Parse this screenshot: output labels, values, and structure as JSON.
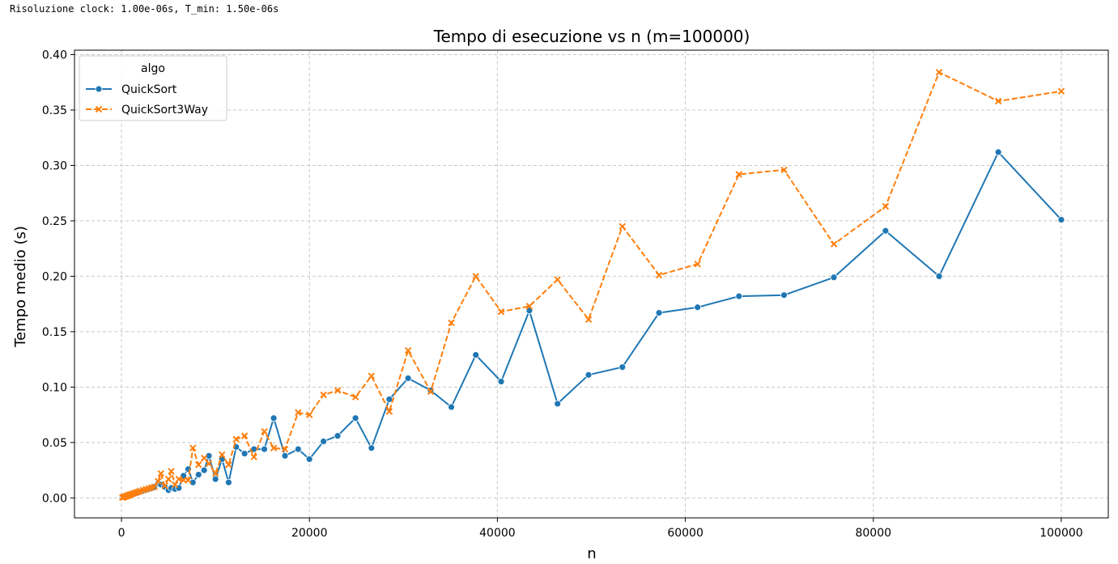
{
  "console_output": "Risoluzione clock: 1.00e-06s, T_min: 1.50e-06s",
  "chart_data": {
    "type": "line",
    "title": "Tempo di esecuzione vs n (m=100000)",
    "xlabel": "n",
    "ylabel": "Tempo medio (s)",
    "xlim": [
      -5000,
      105000
    ],
    "ylim": [
      -0.018,
      0.404
    ],
    "xticks": [
      0,
      20000,
      40000,
      60000,
      80000,
      100000
    ],
    "yticks": [
      0.0,
      0.05,
      0.1,
      0.15,
      0.2,
      0.25,
      0.3,
      0.35,
      0.4
    ],
    "xtick_labels": [
      "0",
      "20000",
      "40000",
      "60000",
      "80000",
      "100000"
    ],
    "ytick_labels": [
      "0.00",
      "0.05",
      "0.10",
      "0.15",
      "0.20",
      "0.25",
      "0.30",
      "0.35",
      "0.40"
    ],
    "grid": true,
    "legend": {
      "title": "algo",
      "position": "top-left"
    },
    "series": [
      {
        "name": "QuickSort",
        "color": "#1f77b4",
        "line_style": "solid",
        "marker": "circle",
        "x": [
          100,
          200,
          300,
          400,
          500,
          600,
          700,
          800,
          900,
          1000,
          1200,
          1400,
          1600,
          1800,
          2000,
          2300,
          2600,
          2900,
          3200,
          3500,
          3900,
          4200,
          4600,
          5000,
          5300,
          5700,
          6100,
          6600,
          7100,
          7600,
          8200,
          8800,
          9300,
          10000,
          10700,
          11400,
          12200,
          13100,
          14100,
          15200,
          16200,
          17400,
          18800,
          20000,
          21500,
          23000,
          24900,
          26600,
          28500,
          30500,
          32900,
          35100,
          37700,
          40400,
          43400,
          46400,
          49700,
          53300,
          57200,
          61300,
          65700,
          70500,
          75800,
          81300,
          87000,
          93300,
          100000
        ],
        "y": [
          0.0003,
          0.0005,
          0.0008,
          0.0011,
          0.0013,
          0.0016,
          0.0019,
          0.0022,
          0.0025,
          0.0028,
          0.0033,
          0.0039,
          0.0044,
          0.005,
          0.0055,
          0.0064,
          0.0072,
          0.0081,
          0.009,
          0.01,
          0.013,
          0.012,
          0.01,
          0.007,
          0.009,
          0.008,
          0.009,
          0.02,
          0.026,
          0.014,
          0.021,
          0.025,
          0.038,
          0.017,
          0.035,
          0.014,
          0.046,
          0.04,
          0.044,
          0.044,
          0.072,
          0.038,
          0.044,
          0.035,
          0.051,
          0.056,
          0.072,
          0.045,
          0.089,
          0.108,
          0.097,
          0.082,
          0.129,
          0.105,
          0.169,
          0.085,
          0.111,
          0.118,
          0.167,
          0.172,
          0.182,
          0.183,
          0.199,
          0.241,
          0.2,
          0.312,
          0.251
        ]
      },
      {
        "name": "QuickSort3Way",
        "color": "#ff7f0e",
        "line_style": "dashed",
        "marker": "x",
        "x": [
          100,
          200,
          300,
          400,
          500,
          600,
          700,
          800,
          900,
          1000,
          1200,
          1400,
          1600,
          1800,
          2000,
          2300,
          2600,
          2900,
          3200,
          3500,
          3900,
          4200,
          4600,
          5000,
          5300,
          5700,
          6100,
          6600,
          7100,
          7600,
          8200,
          8800,
          9300,
          10000,
          10700,
          11400,
          12200,
          13100,
          14100,
          15200,
          16200,
          17400,
          18800,
          20000,
          21500,
          23000,
          24900,
          26600,
          28500,
          30500,
          32900,
          35100,
          37700,
          40400,
          43400,
          46400,
          49700,
          53300,
          57200,
          61300,
          65700,
          70500,
          75800,
          81300,
          87000,
          93300,
          100000
        ],
        "y": [
          0.0004,
          0.0006,
          0.0009,
          0.0012,
          0.0015,
          0.0018,
          0.0022,
          0.0025,
          0.0028,
          0.0032,
          0.0038,
          0.0044,
          0.005,
          0.0056,
          0.0062,
          0.007,
          0.0078,
          0.0085,
          0.0093,
          0.01,
          0.015,
          0.022,
          0.011,
          0.017,
          0.024,
          0.012,
          0.017,
          0.016,
          0.016,
          0.045,
          0.03,
          0.036,
          0.031,
          0.022,
          0.039,
          0.03,
          0.053,
          0.056,
          0.037,
          0.06,
          0.045,
          0.044,
          0.077,
          0.075,
          0.093,
          0.097,
          0.091,
          0.11,
          0.078,
          0.133,
          0.096,
          0.158,
          0.2,
          0.168,
          0.173,
          0.197,
          0.161,
          0.245,
          0.201,
          0.211,
          0.292,
          0.296,
          0.229,
          0.263,
          0.384,
          0.358,
          0.367
        ]
      }
    ]
  }
}
